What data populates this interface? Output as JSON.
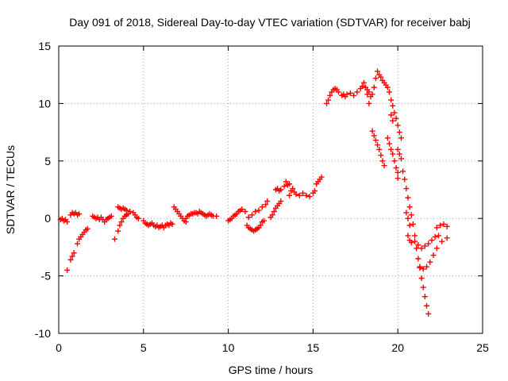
{
  "chart_data": {
    "type": "scatter",
    "title": "Day 091 of 2018, Sidereal Day-to-day VTEC variation (SDTVAR) for receiver babj",
    "xlabel": "GPS time / hours",
    "ylabel": "SDTVAR / TECUs",
    "xlim": [
      0,
      25
    ],
    "ylim": [
      -10,
      15
    ],
    "x_ticks": [
      0,
      5,
      10,
      15,
      20,
      25
    ],
    "y_ticks": [
      -10,
      -5,
      0,
      5,
      10,
      15
    ],
    "x_tick_labels": [
      "0",
      "5",
      "10",
      "15",
      "20",
      "25"
    ],
    "y_tick_labels": [
      "-10",
      "-5",
      "0",
      "5",
      "10",
      "15"
    ],
    "grid": true,
    "marker": "+",
    "color": "#ff0000",
    "series": [
      {
        "name": "babj",
        "points": [
          [
            0.1,
            -0.1
          ],
          [
            0.2,
            0.0
          ],
          [
            0.3,
            -0.2
          ],
          [
            0.4,
            -0.1
          ],
          [
            0.5,
            -0.3
          ],
          [
            0.5,
            -4.5
          ],
          [
            0.7,
            -3.6
          ],
          [
            0.8,
            -3.3
          ],
          [
            0.9,
            -3.0
          ],
          [
            0.7,
            0.3
          ],
          [
            0.8,
            0.5
          ],
          [
            0.9,
            0.4
          ],
          [
            1.0,
            0.5
          ],
          [
            1.1,
            0.3
          ],
          [
            1.2,
            0.4
          ],
          [
            1.1,
            -2.2
          ],
          [
            1.2,
            -1.8
          ],
          [
            1.3,
            -1.6
          ],
          [
            1.4,
            -1.4
          ],
          [
            1.5,
            -1.2
          ],
          [
            1.6,
            -1.0
          ],
          [
            1.7,
            -0.9
          ],
          [
            2.0,
            0.2
          ],
          [
            2.1,
            0.1
          ],
          [
            2.2,
            0.0
          ],
          [
            2.3,
            0.1
          ],
          [
            2.4,
            -0.1
          ],
          [
            2.5,
            0.1
          ],
          [
            2.6,
            -0.1
          ],
          [
            2.7,
            -0.3
          ],
          [
            2.8,
            -0.1
          ],
          [
            2.9,
            0.0
          ],
          [
            3.0,
            0.1
          ],
          [
            3.1,
            0.2
          ],
          [
            3.3,
            -1.8
          ],
          [
            3.5,
            -1.1
          ],
          [
            3.6,
            -0.6
          ],
          [
            3.7,
            -0.3
          ],
          [
            3.8,
            0.0
          ],
          [
            3.9,
            0.2
          ],
          [
            4.0,
            0.3
          ],
          [
            4.1,
            0.4
          ],
          [
            3.5,
            1.0
          ],
          [
            3.6,
            0.9
          ],
          [
            3.7,
            0.8
          ],
          [
            3.8,
            0.9
          ],
          [
            3.9,
            0.8
          ],
          [
            4.0,
            0.7
          ],
          [
            4.2,
            0.6
          ],
          [
            4.4,
            0.5
          ],
          [
            4.5,
            0.3
          ],
          [
            4.6,
            0.1
          ],
          [
            4.7,
            0.0
          ],
          [
            5.0,
            -0.2
          ],
          [
            5.1,
            -0.4
          ],
          [
            5.2,
            -0.5
          ],
          [
            5.3,
            -0.6
          ],
          [
            5.4,
            -0.5
          ],
          [
            5.5,
            -0.4
          ],
          [
            5.6,
            -0.6
          ],
          [
            5.7,
            -0.7
          ],
          [
            5.8,
            -0.6
          ],
          [
            5.9,
            -0.8
          ],
          [
            6.0,
            -0.7
          ],
          [
            6.1,
            -0.6
          ],
          [
            6.2,
            -0.8
          ],
          [
            6.3,
            -0.6
          ],
          [
            6.4,
            -0.5
          ],
          [
            6.5,
            -0.6
          ],
          [
            6.6,
            -0.4
          ],
          [
            6.7,
            -0.5
          ],
          [
            6.8,
            1.0
          ],
          [
            6.9,
            0.8
          ],
          [
            7.0,
            0.6
          ],
          [
            7.1,
            0.4
          ],
          [
            7.2,
            0.2
          ],
          [
            7.3,
            0.0
          ],
          [
            7.4,
            -0.2
          ],
          [
            7.5,
            -0.3
          ],
          [
            7.5,
            0.0
          ],
          [
            7.6,
            0.2
          ],
          [
            7.7,
            0.3
          ],
          [
            7.8,
            0.4
          ],
          [
            7.9,
            0.4
          ],
          [
            8.0,
            0.5
          ],
          [
            8.1,
            0.5
          ],
          [
            8.2,
            0.4
          ],
          [
            8.3,
            0.6
          ],
          [
            8.4,
            0.5
          ],
          [
            8.5,
            0.4
          ],
          [
            8.6,
            0.3
          ],
          [
            8.7,
            0.2
          ],
          [
            8.8,
            0.3
          ],
          [
            8.9,
            0.4
          ],
          [
            9.0,
            0.3
          ],
          [
            9.1,
            0.2
          ],
          [
            9.3,
            0.2
          ],
          [
            10.0,
            -0.2
          ],
          [
            10.1,
            -0.1
          ],
          [
            10.2,
            0.0
          ],
          [
            10.3,
            0.2
          ],
          [
            10.4,
            0.3
          ],
          [
            10.5,
            0.4
          ],
          [
            10.6,
            0.6
          ],
          [
            10.7,
            0.7
          ],
          [
            10.8,
            0.8
          ],
          [
            11.0,
            0.6
          ],
          [
            11.1,
            -0.6
          ],
          [
            11.2,
            -0.8
          ],
          [
            11.3,
            -0.9
          ],
          [
            11.4,
            -1.0
          ],
          [
            11.5,
            -1.1
          ],
          [
            11.6,
            -1.0
          ],
          [
            11.7,
            -0.9
          ],
          [
            11.8,
            -0.8
          ],
          [
            11.9,
            -0.6
          ],
          [
            12.0,
            -0.3
          ],
          [
            12.1,
            -0.2
          ],
          [
            11.2,
            0.1
          ],
          [
            11.4,
            0.3
          ],
          [
            11.6,
            0.6
          ],
          [
            11.8,
            0.7
          ],
          [
            12.0,
            1.0
          ],
          [
            12.2,
            1.2
          ],
          [
            12.3,
            1.5
          ],
          [
            12.5,
            0.1
          ],
          [
            12.6,
            0.3
          ],
          [
            12.7,
            0.6
          ],
          [
            12.8,
            0.9
          ],
          [
            12.9,
            1.1
          ],
          [
            13.0,
            1.3
          ],
          [
            13.1,
            1.5
          ],
          [
            12.8,
            2.5
          ],
          [
            12.9,
            2.6
          ],
          [
            13.0,
            2.4
          ],
          [
            13.1,
            2.5
          ],
          [
            13.3,
            2.8
          ],
          [
            13.4,
            3.2
          ],
          [
            13.5,
            2.9
          ],
          [
            13.6,
            3.0
          ],
          [
            13.6,
            2.0
          ],
          [
            13.7,
            2.4
          ],
          [
            13.8,
            2.6
          ],
          [
            13.9,
            2.3
          ],
          [
            14.0,
            2.1
          ],
          [
            14.2,
            2.0
          ],
          [
            14.4,
            2.2
          ],
          [
            14.6,
            2.0
          ],
          [
            14.8,
            1.9
          ],
          [
            15.0,
            2.2
          ],
          [
            15.1,
            2.4
          ],
          [
            15.2,
            3.0
          ],
          [
            15.3,
            3.2
          ],
          [
            15.4,
            3.4
          ],
          [
            15.5,
            3.6
          ],
          [
            15.8,
            10.0
          ],
          [
            15.9,
            10.3
          ],
          [
            16.0,
            10.7
          ],
          [
            16.1,
            11.0
          ],
          [
            16.2,
            11.2
          ],
          [
            16.3,
            11.3
          ],
          [
            16.4,
            11.2
          ],
          [
            16.5,
            11.0
          ],
          [
            16.7,
            10.7
          ],
          [
            16.8,
            10.8
          ],
          [
            16.9,
            10.6
          ],
          [
            17.0,
            10.8
          ],
          [
            17.2,
            10.9
          ],
          [
            17.4,
            10.7
          ],
          [
            17.6,
            11.0
          ],
          [
            17.8,
            11.3
          ],
          [
            17.9,
            11.5
          ],
          [
            18.0,
            11.8
          ],
          [
            18.1,
            11.4
          ],
          [
            18.2,
            11.2
          ],
          [
            18.3,
            11.0
          ],
          [
            18.4,
            10.6
          ],
          [
            18.5,
            10.8
          ],
          [
            18.6,
            11.4
          ],
          [
            18.7,
            12.2
          ],
          [
            18.8,
            12.8
          ],
          [
            18.9,
            12.5
          ],
          [
            19.0,
            12.3
          ],
          [
            19.1,
            12.0
          ],
          [
            19.2,
            11.8
          ],
          [
            19.3,
            11.6
          ],
          [
            19.4,
            11.4
          ],
          [
            19.5,
            11.0
          ],
          [
            18.2,
            10.8
          ],
          [
            18.3,
            10.0
          ],
          [
            18.5,
            7.6
          ],
          [
            18.6,
            7.2
          ],
          [
            18.7,
            6.8
          ],
          [
            18.8,
            6.4
          ],
          [
            18.9,
            6.0
          ],
          [
            19.0,
            5.5
          ],
          [
            19.1,
            5.0
          ],
          [
            19.2,
            4.6
          ],
          [
            19.6,
            10.3
          ],
          [
            19.7,
            9.8
          ],
          [
            19.8,
            9.2
          ],
          [
            19.9,
            8.7
          ],
          [
            20.0,
            8.1
          ],
          [
            20.1,
            7.5
          ],
          [
            20.2,
            7.0
          ],
          [
            19.6,
            9.0
          ],
          [
            19.7,
            8.5
          ],
          [
            19.4,
            7.0
          ],
          [
            19.5,
            6.5
          ],
          [
            19.6,
            6.0
          ],
          [
            19.7,
            5.6
          ],
          [
            19.8,
            5.0
          ],
          [
            19.9,
            4.4
          ],
          [
            20.0,
            4.0
          ],
          [
            20.0,
            3.5
          ],
          [
            20.0,
            6.0
          ],
          [
            20.1,
            5.6
          ],
          [
            20.2,
            5.2
          ],
          [
            20.3,
            4.1
          ],
          [
            20.4,
            3.4
          ],
          [
            20.5,
            2.6
          ],
          [
            20.6,
            1.8
          ],
          [
            20.7,
            1.0
          ],
          [
            20.8,
            0.3
          ],
          [
            20.9,
            -0.5
          ],
          [
            21.0,
            -1.5
          ],
          [
            21.1,
            -2.6
          ],
          [
            21.2,
            -3.5
          ],
          [
            21.3,
            -4.3
          ],
          [
            21.4,
            -5.2
          ],
          [
            21.5,
            -6.0
          ],
          [
            21.6,
            -6.8
          ],
          [
            21.7,
            -7.6
          ],
          [
            21.8,
            -8.3
          ],
          [
            20.5,
            0.5
          ],
          [
            20.6,
            0.0
          ],
          [
            20.7,
            -0.6
          ],
          [
            20.6,
            -1.5
          ],
          [
            20.7,
            -1.9
          ],
          [
            20.8,
            -2.1
          ],
          [
            21.0,
            -2.0
          ],
          [
            21.2,
            -2.3
          ],
          [
            21.4,
            -2.6
          ],
          [
            21.6,
            -2.4
          ],
          [
            21.8,
            -2.2
          ],
          [
            22.0,
            -1.9
          ],
          [
            22.2,
            -1.6
          ],
          [
            22.4,
            -1.5
          ],
          [
            21.3,
            -4.2
          ],
          [
            21.5,
            -4.4
          ],
          [
            21.7,
            -4.2
          ],
          [
            21.9,
            -3.8
          ],
          [
            22.1,
            -3.2
          ],
          [
            22.3,
            -2.6
          ],
          [
            22.6,
            -2.0
          ],
          [
            22.9,
            -1.7
          ],
          [
            22.3,
            -0.8
          ],
          [
            22.5,
            -0.6
          ],
          [
            22.7,
            -0.5
          ],
          [
            22.9,
            -0.7
          ]
        ]
      }
    ]
  }
}
